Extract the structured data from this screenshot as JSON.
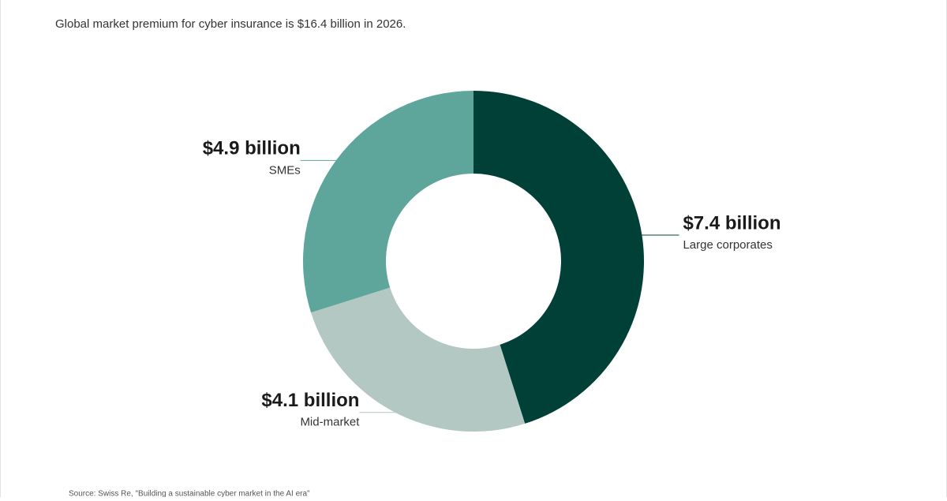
{
  "chart_data": {
    "type": "donut",
    "subtitle": "Global market premium for cyber insurance is $16.4 billion in 2026.",
    "categories": [
      "Large corporates",
      "Mid-market",
      "SMEs"
    ],
    "values": [
      7.4,
      4.1,
      4.9
    ],
    "value_labels": [
      "$7.4 billion",
      "$4.1 billion",
      "$4.9 billion"
    ],
    "colors": [
      "#004036",
      "#b3c7c3",
      "#5ea59b"
    ],
    "source": "Source: Swiss Re, \"Building a sustainable cyber market in the AI era\""
  }
}
